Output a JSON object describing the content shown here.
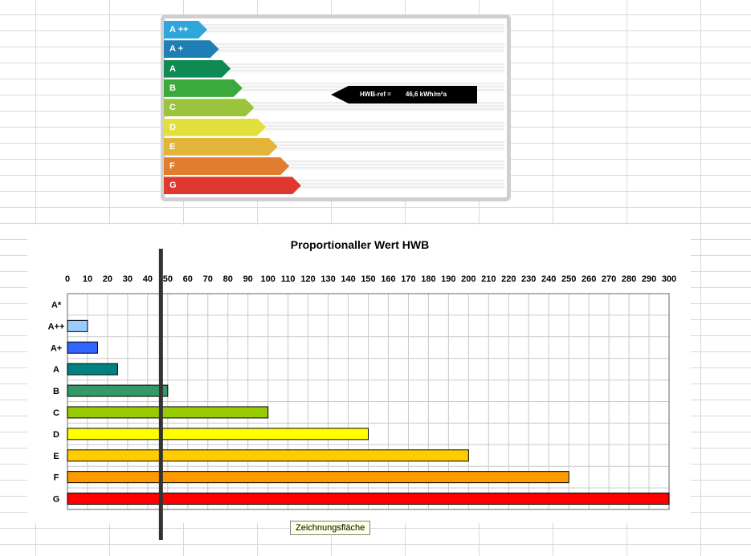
{
  "energy_label": {
    "classes": [
      {
        "label": "A ++",
        "color": "#2ea6dc"
      },
      {
        "label": "A +",
        "color": "#1f7fb4"
      },
      {
        "label": "A",
        "color": "#0f8a55"
      },
      {
        "label": "B",
        "color": "#3aaa3c"
      },
      {
        "label": "C",
        "color": "#9bc33b"
      },
      {
        "label": "D",
        "color": "#e2df3c"
      },
      {
        "label": "E",
        "color": "#e3b43a"
      },
      {
        "label": "F",
        "color": "#e07d2f"
      },
      {
        "label": "G",
        "color": "#e0372f"
      }
    ],
    "ref_label": "HWB-ref =",
    "ref_value": "46,6 kWh/m²a"
  },
  "tooltip": "Zeichnungsfläche",
  "chart_data": {
    "type": "bar",
    "orientation": "horizontal",
    "title": "Proportionaller Wert HWB",
    "categories": [
      "A*",
      "A++",
      "A+",
      "A",
      "B",
      "C",
      "D",
      "E",
      "F",
      "G"
    ],
    "values": [
      0,
      10,
      15,
      25,
      50,
      100,
      150,
      200,
      250,
      300
    ],
    "colors": [
      "#ffffff",
      "#99ccff",
      "#3366ff",
      "#008080",
      "#339966",
      "#99cc00",
      "#ffff00",
      "#ffcc00",
      "#ff9900",
      "#ff0000"
    ],
    "xlim": [
      0,
      300
    ],
    "xticks": [
      0,
      10,
      20,
      30,
      40,
      50,
      60,
      70,
      80,
      90,
      100,
      110,
      120,
      130,
      140,
      150,
      160,
      170,
      180,
      190,
      200,
      210,
      220,
      230,
      240,
      250,
      260,
      270,
      280,
      290,
      300
    ],
    "x_axis_position": "top",
    "grid": true,
    "reference_value": 46.6
  }
}
